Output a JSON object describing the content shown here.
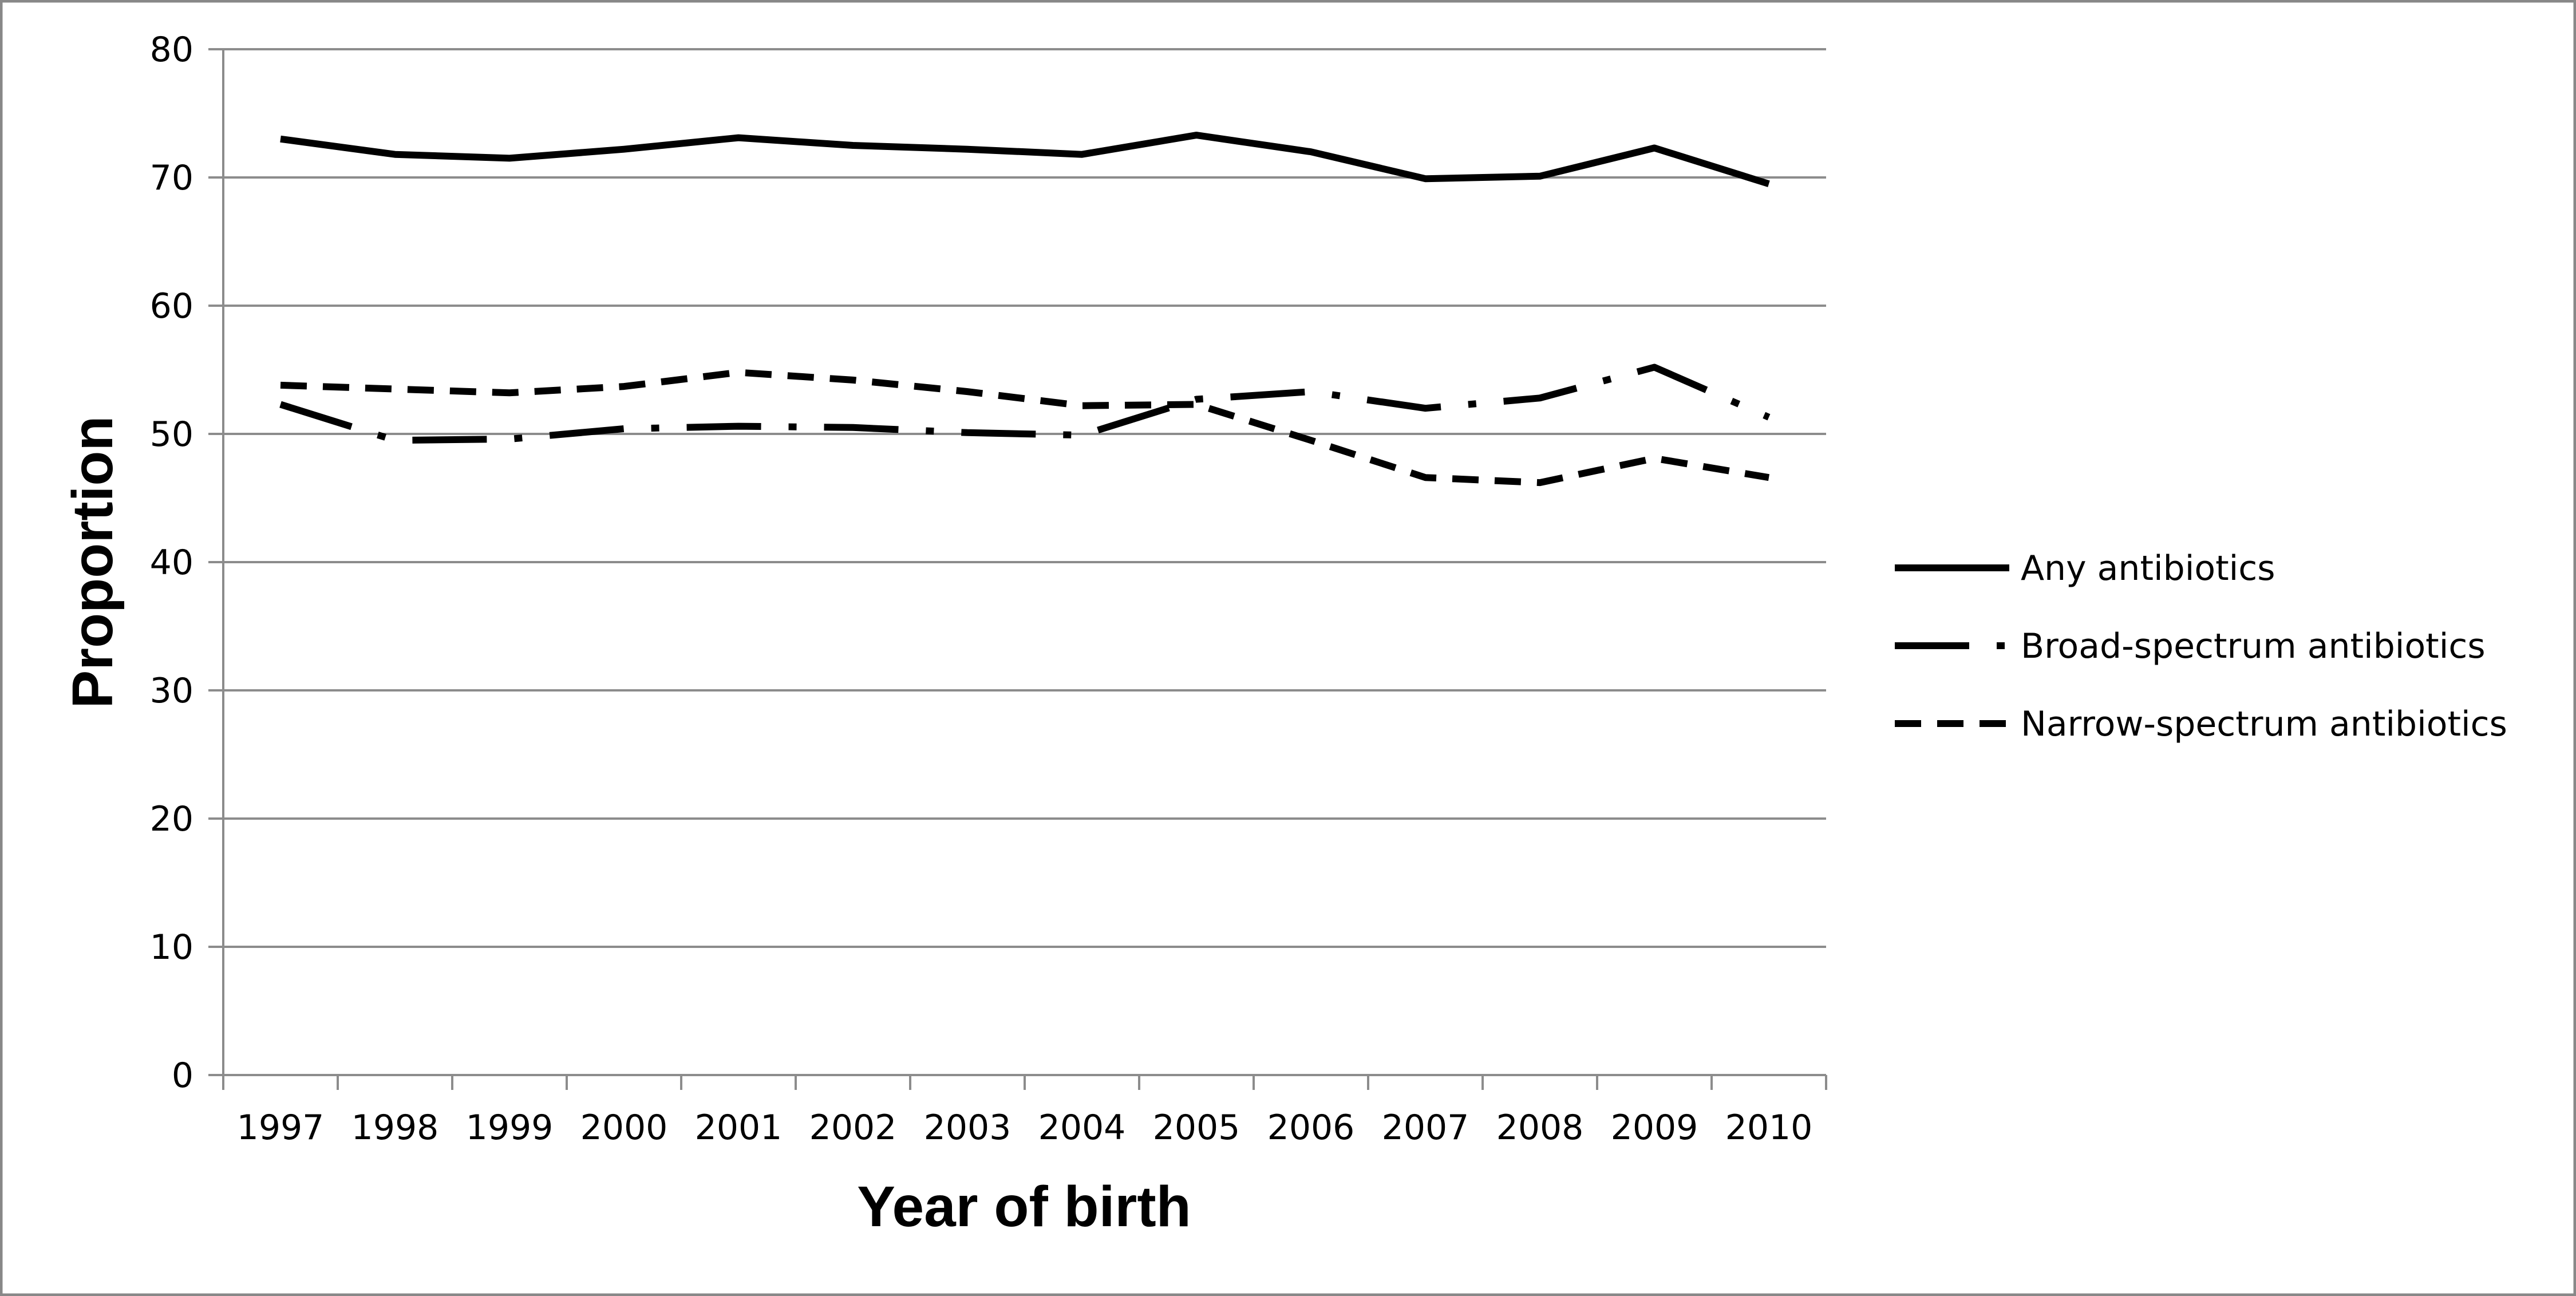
{
  "chart_data": {
    "type": "line",
    "title": "",
    "xlabel": "Year of birth",
    "ylabel": "Proportion",
    "ylim": [
      0,
      80
    ],
    "yticks": [
      0,
      10,
      20,
      30,
      40,
      50,
      60,
      70,
      80
    ],
    "categories": [
      "1997",
      "1998",
      "1999",
      "2000",
      "2001",
      "2002",
      "2003",
      "2004",
      "2005",
      "2006",
      "2007",
      "2008",
      "2009",
      "2010"
    ],
    "grid": true,
    "legend_position": "right",
    "series": [
      {
        "name": "Any antibiotics",
        "line_style": "solid",
        "color": "#000000",
        "values": [
          73.0,
          71.8,
          71.5,
          72.2,
          73.1,
          72.5,
          72.2,
          71.8,
          73.3,
          72.0,
          69.9,
          70.1,
          72.3,
          69.5
        ]
      },
      {
        "name": "Broad-spectrum antibiotics",
        "line_style": "long-dash-dot",
        "color": "#000000",
        "values": [
          52.3,
          49.5,
          49.6,
          50.4,
          50.6,
          50.5,
          50.1,
          49.9,
          52.7,
          53.3,
          52.0,
          52.8,
          55.2,
          51.3
        ]
      },
      {
        "name": "Narrow-spectrum antibiotics",
        "line_style": "short-dash",
        "color": "#000000",
        "values": [
          53.8,
          53.5,
          53.2,
          53.7,
          54.8,
          54.2,
          53.3,
          52.2,
          52.3,
          49.5,
          46.6,
          46.2,
          48.1,
          46.6
        ]
      }
    ]
  }
}
